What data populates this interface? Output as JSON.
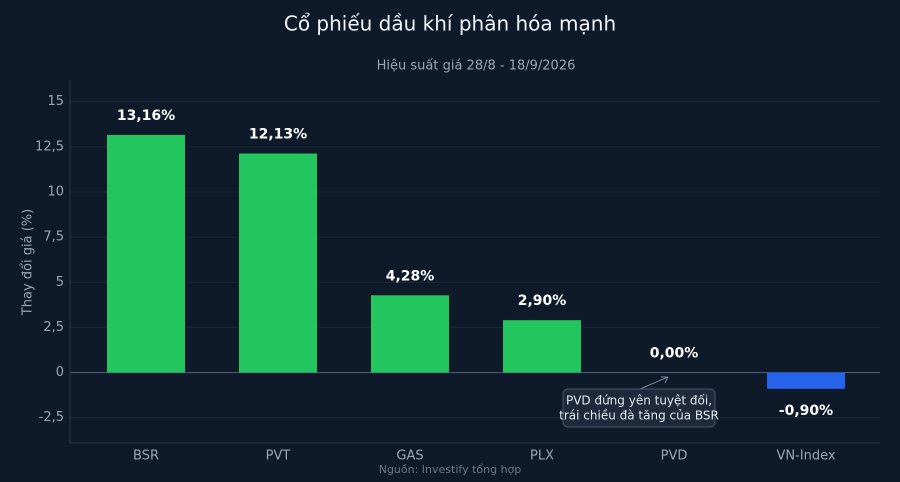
{
  "chart_data": {
    "type": "bar",
    "title": "Cổ phiếu dầu khí phân hóa mạnh",
    "subtitle": "Hiệu suất giá 28/8 - 18/9/2026",
    "y_label": "Thay đổi giá (%)",
    "source": "Nguồn: Investify tổng hợp",
    "categories": [
      "BSR",
      "PVT",
      "GAS",
      "PLX",
      "PVD",
      "VN-Index"
    ],
    "values": [
      13.16,
      12.13,
      4.28,
      2.9,
      0,
      -0.9
    ],
    "value_labels": [
      "13,16%",
      "12,13%",
      "4,28%",
      "2,90%",
      "0,00%",
      "-0,90%"
    ],
    "colors": [
      "#22c55e",
      "#22c55e",
      "#22c55e",
      "#22c55e",
      "#22c55e",
      "#2563eb"
    ],
    "ylim": [
      -3.9,
      16.2
    ],
    "yticks": [
      {
        "value": -2.5,
        "label": "-2,5"
      },
      0,
      {
        "value": 2.5,
        "label": "2,5"
      },
      5,
      {
        "value": 7.5,
        "label": "7,5"
      },
      10,
      {
        "value": 12.5,
        "label": "12,5"
      },
      15
    ],
    "grid": true,
    "annotation": {
      "lines": [
        "PVD đứng yên tuyệt đối,",
        "trái chiều đà tăng của BSR"
      ]
    }
  }
}
